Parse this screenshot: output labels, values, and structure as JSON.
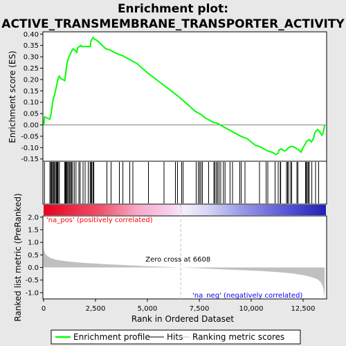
{
  "chart_data": {
    "type": "line",
    "title_lines": [
      "Enrichment plot:",
      "ACTIVE_TRANSMEMBRANE_TRANSPORTER_ACTIVITY"
    ],
    "es_panel": {
      "ylabel": "Enrichment score (ES)",
      "ylim": [
        -0.16,
        0.41
      ],
      "yticks": [
        -0.15,
        -0.1,
        -0.05,
        0.0,
        0.05,
        0.1,
        0.15,
        0.2,
        0.25,
        0.3,
        0.35,
        0.4
      ],
      "ytick_labels": [
        "-0.15",
        "-0.10",
        "-0.05",
        "0.00",
        "0.05",
        "0.10",
        "0.15",
        "0.20",
        "0.25",
        "0.30",
        "0.35",
        "0.40"
      ],
      "series_name": "Enrichment profile",
      "x": [
        0,
        50,
        300,
        350,
        400,
        450,
        500,
        560,
        620,
        680,
        720,
        760,
        820,
        1020,
        1060,
        1100,
        1150,
        1200,
        1250,
        1300,
        1380,
        1420,
        1500,
        1600,
        1650,
        1700,
        1750,
        1800,
        1850,
        1900,
        1950,
        2050,
        2150,
        2250,
        2280,
        2320,
        2380,
        2420,
        2600,
        3000,
        3200,
        3500,
        3800,
        4200,
        4500,
        5000,
        5500,
        6000,
        6500,
        7000,
        7300,
        7600,
        7800,
        8000,
        8200,
        8300,
        8500,
        8700,
        9000,
        9300,
        9500,
        9800,
        10000,
        10200,
        10400,
        10600,
        10800,
        11000,
        11200,
        11300,
        11350,
        11450,
        11600,
        11700,
        11800,
        11900,
        12000,
        12100,
        12200,
        12300,
        12400,
        12500,
        12600,
        12650,
        12700,
        12800,
        12900,
        13000,
        13050,
        13100,
        13200,
        13300,
        13400,
        13450,
        13500,
        13540
      ],
      "y": [
        -0.005,
        0.035,
        0.025,
        0.045,
        0.075,
        0.11,
        0.125,
        0.145,
        0.17,
        0.195,
        0.21,
        0.215,
        0.205,
        0.195,
        0.22,
        0.255,
        0.28,
        0.295,
        0.305,
        0.315,
        0.33,
        0.335,
        0.33,
        0.32,
        0.34,
        0.345,
        0.345,
        0.35,
        0.345,
        0.345,
        0.345,
        0.345,
        0.345,
        0.345,
        0.37,
        0.375,
        0.385,
        0.38,
        0.37,
        0.335,
        0.33,
        0.315,
        0.305,
        0.285,
        0.27,
        0.23,
        0.195,
        0.16,
        0.125,
        0.085,
        0.06,
        0.045,
        0.03,
        0.02,
        0.01,
        0.01,
        0.0,
        -0.01,
        -0.025,
        -0.04,
        -0.05,
        -0.06,
        -0.075,
        -0.09,
        -0.095,
        -0.105,
        -0.115,
        -0.12,
        -0.13,
        -0.125,
        -0.11,
        -0.105,
        -0.115,
        -0.11,
        -0.1,
        -0.095,
        -0.095,
        -0.1,
        -0.105,
        -0.11,
        -0.12,
        -0.1,
        -0.085,
        -0.075,
        -0.07,
        -0.065,
        -0.075,
        -0.06,
        -0.04,
        -0.03,
        -0.02,
        -0.03,
        -0.045,
        -0.04,
        -0.02,
        0.0
      ]
    },
    "hits_x": [
      40,
      300,
      350,
      380,
      430,
      470,
      510,
      560,
      610,
      640,
      670,
      700,
      760,
      1020,
      1050,
      1080,
      1120,
      1160,
      1210,
      1260,
      1300,
      1350,
      1400,
      1480,
      1560,
      1700,
      1760,
      1900,
      2000,
      2150,
      2240,
      2280,
      2320,
      2380,
      2420,
      3050,
      3250,
      3650,
      3820,
      4150,
      4300,
      5050,
      5800,
      6350,
      6450,
      6650,
      6720,
      7350,
      7450,
      7520,
      7580,
      7650,
      7950,
      8200,
      8250,
      8320,
      8380,
      8450,
      8530,
      8660,
      8740,
      8980,
      9100,
      9450,
      9520,
      9700,
      10400,
      10720,
      10800,
      11150,
      11300,
      11400,
      11420,
      11700,
      11750,
      11800,
      11900,
      11950,
      12200,
      12250,
      12620,
      12650,
      12700,
      12750,
      12800,
      12920,
      13100,
      13250
    ],
    "ranked_panel": {
      "ylabel": "Ranked list metric (PreRanked)",
      "ylim": [
        -1.25,
        2.05
      ],
      "yticks": [
        -1.0,
        -0.5,
        0.0,
        0.5,
        1.0,
        1.5,
        2.0
      ],
      "ytick_labels": [
        "-1.0",
        "-0.5",
        "0.0",
        "0.5",
        "1.0",
        "1.5",
        "2.0"
      ],
      "series_name": "Ranking metric scores",
      "x": [
        0,
        30,
        80,
        150,
        250,
        400,
        600,
        900,
        1300,
        2000,
        3000,
        4000,
        5000,
        6000,
        6608,
        7500,
        8500,
        9500,
        10500,
        11500,
        12000,
        12500,
        12900,
        13200,
        13350,
        13450,
        13500,
        13540
      ],
      "y": [
        0.8,
        0.65,
        0.55,
        0.48,
        0.42,
        0.36,
        0.31,
        0.27,
        0.23,
        0.18,
        0.13,
        0.09,
        0.05,
        0.02,
        0.0,
        -0.03,
        -0.07,
        -0.1,
        -0.14,
        -0.2,
        -0.24,
        -0.3,
        -0.38,
        -0.47,
        -0.58,
        -0.75,
        -0.95,
        -1.2
      ],
      "zero_cross_x": 6608,
      "zero_cross_label": "Zero cross at 6608",
      "pos_label": "'na_pos' (positively correlated)",
      "neg_label": "'na_neg' (negatively correlated)"
    },
    "xaxis": {
      "label": "Rank in Ordered Dataset",
      "xlim": [
        0,
        13600
      ],
      "ticks": [
        0,
        2500,
        5000,
        7500,
        10000,
        12500
      ],
      "tick_labels": [
        "0",
        "2,500",
        "5,000",
        "7,500",
        "10,000",
        "12,500"
      ]
    },
    "legend": {
      "placement": "bottom",
      "items": [
        {
          "name": "Enrichment profile",
          "color": "#00ff00",
          "kind": "line"
        },
        {
          "name": "Hits",
          "color": "#000000",
          "kind": "line"
        },
        {
          "name": "Ranking metric scores",
          "color": "#c0c0c0",
          "kind": "line"
        }
      ]
    },
    "colors": {
      "profile": "#00ff00",
      "hits": "#000000",
      "metric_fill": "#c0c0c0",
      "pos_label": "#ff0000",
      "neg_label": "#0000ff",
      "zero_line": "#c0c0c0",
      "background": "#e8e8e8"
    }
  }
}
